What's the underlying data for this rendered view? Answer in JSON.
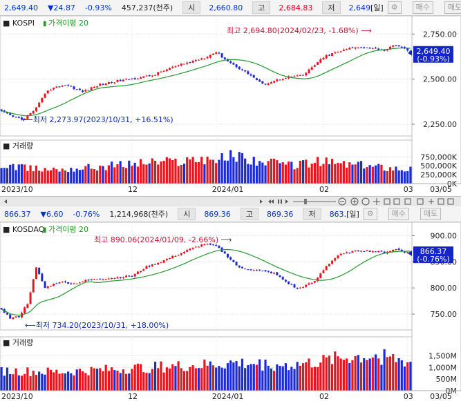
{
  "top": {
    "price": "2,649.40",
    "change": "▼24.87",
    "pct": "-0.93%",
    "volume": "457,237(천주)",
    "open_label": "시",
    "open": "2,660.80",
    "high_label": "고",
    "high": "2,684.83",
    "low_label": "저",
    "low": "2,649",
    "period": "[일]",
    "buy": "매수",
    "sell": "매도"
  },
  "bottom": {
    "price": "866.37",
    "change": "▼6.60",
    "pct": "-0.76%",
    "volume": "1,214,968(천주)",
    "open_label": "시",
    "open": "869.36",
    "high_label": "고",
    "high": "869.36",
    "low_label": "저",
    "low": "863.",
    "period": "[일]",
    "buy": "매수",
    "sell": "매도"
  },
  "colors": {
    "up": "#e8141e",
    "down": "#1c2bd6",
    "ma": "#239a2b"
  },
  "chart_data": [
    {
      "type": "candlestick",
      "name": "KOSPI",
      "ma_label": "가격이평 20",
      "price_ticks": [
        "2,750.00",
        "2,500.00",
        "2,250.00"
      ],
      "price_tick_values": [
        2750,
        2500,
        2250
      ],
      "last_price": "2,649.40",
      "last_pct": "(-0.93%)",
      "high_annotation": "최고 2,694.80(2024/02/23, -1.68%)",
      "low_annotation": "최저 2,273.97(2023/10/31, +16.51%)",
      "volume_title": "거래량",
      "volume_ticks": [
        "750,000K",
        "500,000K",
        "250,000K",
        "0K"
      ],
      "volume_tick_values": [
        750000,
        500000,
        250000,
        0
      ],
      "x_labels": [
        "2023/10",
        "12",
        "2024/01",
        "02",
        "03",
        "03/05"
      ],
      "x_label_index": [
        0,
        45,
        74,
        111,
        140,
        150
      ],
      "ylim": [
        2200,
        2820
      ],
      "vol_max": 950000,
      "anchors": {
        "i": [
          0,
          4,
          8,
          12,
          16,
          22,
          28,
          34,
          40,
          46,
          52,
          58,
          66,
          70,
          74,
          78,
          82,
          86,
          90,
          94,
          98,
          104,
          108,
          112,
          116,
          120,
          124,
          128,
          132,
          136,
          141
        ],
        "v": [
          2320,
          2290,
          2278,
          2340,
          2440,
          2470,
          2430,
          2470,
          2490,
          2505,
          2520,
          2560,
          2600,
          2620,
          2650,
          2600,
          2560,
          2520,
          2470,
          2490,
          2510,
          2520,
          2580,
          2630,
          2650,
          2670,
          2680,
          2670,
          2660,
          2690,
          2649
        ]
      },
      "vol_anchors": {
        "i": [
          0,
          10,
          20,
          30,
          40,
          50,
          60,
          70,
          75,
          80,
          90,
          100,
          110,
          120,
          130,
          141
        ],
        "v": [
          480000,
          420000,
          400000,
          450000,
          520000,
          600000,
          620000,
          720000,
          680000,
          800000,
          600000,
          520000,
          620000,
          540000,
          480000,
          420000
        ]
      }
    },
    {
      "type": "candlestick",
      "name": "KOSDAQ",
      "ma_label": "가격이평 20",
      "price_ticks": [
        "900.00",
        "850.00",
        "800.00",
        "750.00"
      ],
      "price_tick_values": [
        900,
        850,
        800,
        750
      ],
      "last_price": "866.37",
      "last_pct": "(-0.76%)",
      "high_annotation": "최고 890.06(2024/01/09, -2.66%)",
      "low_annotation": "최저 734.20(2023/10/31, +18.00%)",
      "volume_title": "거래량",
      "volume_ticks": [
        "1,500M",
        "1,000M",
        "500M",
        "0M"
      ],
      "volume_tick_values": [
        1500,
        1000,
        500,
        0
      ],
      "x_labels": [
        "2023/10",
        "12",
        "2024/01",
        "02",
        "03",
        "03/05"
      ],
      "x_label_index": [
        0,
        45,
        74,
        111,
        140,
        150
      ],
      "ylim": [
        725,
        915
      ],
      "vol_max": 1900,
      "anchors": {
        "i": [
          0,
          3,
          6,
          9,
          12,
          15,
          20,
          25,
          30,
          35,
          40,
          45,
          50,
          55,
          60,
          66,
          70,
          74,
          78,
          82,
          86,
          90,
          94,
          98,
          102,
          108,
          112,
          116,
          120,
          124,
          128,
          132,
          136,
          141
        ],
        "v": [
          760,
          742,
          745,
          770,
          838,
          800,
          812,
          808,
          815,
          818,
          820,
          823,
          840,
          850,
          862,
          876,
          884,
          880,
          860,
          838,
          835,
          832,
          828,
          812,
          798,
          812,
          842,
          862,
          868,
          872,
          870,
          868,
          874,
          866
        ]
      },
      "vol_anchors": {
        "i": [
          0,
          10,
          20,
          30,
          40,
          50,
          60,
          70,
          80,
          90,
          100,
          110,
          120,
          130,
          141
        ],
        "v": [
          850,
          820,
          800,
          860,
          920,
          1000,
          1050,
          1100,
          1200,
          1150,
          1100,
          1250,
          1450,
          1500,
          1220
        ]
      }
    }
  ]
}
